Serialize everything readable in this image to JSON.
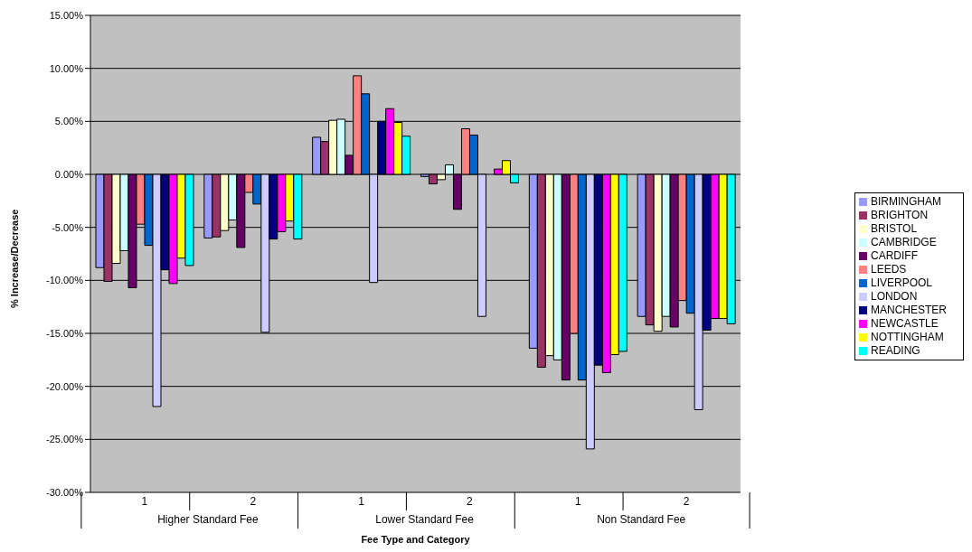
{
  "chart_data": {
    "type": "bar",
    "xlabel": "Fee Type and Category",
    "ylabel": "% Increase/Decrease",
    "categories": [
      "1",
      "2",
      "1",
      "2",
      "1",
      "2"
    ],
    "annotations": [
      "Higher Standard Fee",
      "Lower Standard Fee",
      "Non Standard Fee"
    ],
    "series": [
      {
        "name": "BIRMINGHAM",
        "color": "#9999ff",
        "values": [
          -8.8,
          -6.0,
          3.5,
          -0.2,
          -16.4,
          -13.4
        ]
      },
      {
        "name": "BRIGHTON",
        "color": "#993366",
        "values": [
          -10.1,
          -5.9,
          3.1,
          -0.9,
          -18.2,
          -14.2
        ]
      },
      {
        "name": "BRISTOL",
        "color": "#ffffcc",
        "values": [
          -8.4,
          -5.3,
          5.1,
          -0.5,
          -17.1,
          -14.8
        ]
      },
      {
        "name": "CAMBRIDGE",
        "color": "#ccffff",
        "values": [
          -7.2,
          -4.3,
          5.2,
          0.9,
          -17.5,
          -13.4
        ]
      },
      {
        "name": "CARDIFF",
        "color": "#660066",
        "values": [
          -10.7,
          -6.9,
          1.8,
          -3.3,
          -19.4,
          -14.4
        ]
      },
      {
        "name": "LEEDS",
        "color": "#ff8080",
        "values": [
          -4.7,
          -1.7,
          9.3,
          4.3,
          -15.0,
          -11.9
        ]
      },
      {
        "name": "LIVERPOOL",
        "color": "#0066cc",
        "values": [
          -6.7,
          -2.8,
          7.6,
          3.7,
          -19.4,
          -13.1
        ]
      },
      {
        "name": "LONDON",
        "color": "#ccccff",
        "values": [
          -21.9,
          -14.9,
          -10.2,
          -13.4,
          -25.9,
          -22.2
        ]
      },
      {
        "name": "MANCHESTER",
        "color": "#000080",
        "values": [
          -9.0,
          -6.1,
          5.0,
          0.0,
          -18.0,
          -14.7
        ]
      },
      {
        "name": "NEWCASTLE",
        "color": "#ff00ff",
        "values": [
          -10.3,
          -5.4,
          6.2,
          0.5,
          -18.7,
          -13.6
        ]
      },
      {
        "name": "NOTTINGHAM",
        "color": "#ffff00",
        "values": [
          -7.9,
          -4.4,
          4.9,
          1.3,
          -17.0,
          -13.6
        ]
      },
      {
        "name": "READING",
        "color": "#00ffff",
        "values": [
          -8.6,
          -6.1,
          3.6,
          -0.8,
          -16.7,
          -14.1
        ]
      }
    ],
    "ylim": [
      -30,
      15
    ],
    "yticks": [
      {
        "value": -30,
        "label": "-30.00%"
      },
      {
        "value": -25,
        "label": "-25.00%"
      },
      {
        "value": -20,
        "label": "-20.00%"
      },
      {
        "value": -15,
        "label": "-15.00%"
      },
      {
        "value": -10,
        "label": "-10.00%"
      },
      {
        "value": -5,
        "label": "-5.00%"
      },
      {
        "value": 0,
        "label": "0.00%"
      },
      {
        "value": 5,
        "label": "5.00%"
      },
      {
        "value": 10,
        "label": "10.00%"
      },
      {
        "value": 15,
        "label": "15.00%"
      }
    ],
    "grid": "y",
    "legend": "right"
  }
}
